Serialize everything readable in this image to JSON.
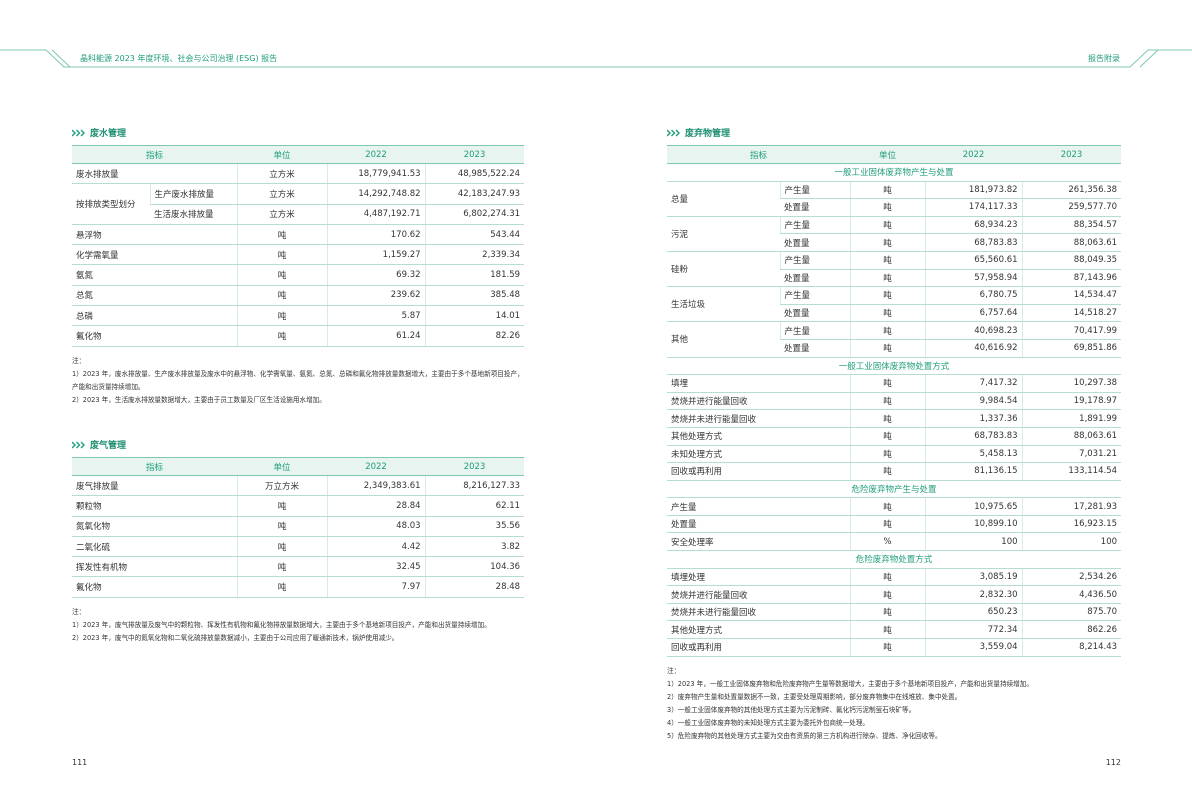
{
  "header": {
    "title": "晶科能源 2023 年度环境、社会与公司治理 (ESG) 报告",
    "section": "报告附录"
  },
  "page_numbers": [
    "111",
    "112"
  ],
  "wastewater": {
    "title": "废水管理",
    "header": [
      "指标",
      "单位",
      "2022",
      "2023"
    ],
    "rows": [
      [
        "废水排放量",
        "立方米",
        "18,779,941.53",
        "48,985,522.24"
      ],
      {
        "label": "按排放类型划分",
        "rows": [
          [
            "生产废水排放量",
            "立方米",
            "14,292,748.82",
            "42,183,247.93"
          ],
          [
            "生活废水排放量",
            "立方米",
            "4,487,192.71",
            "6,802,274.31"
          ]
        ]
      },
      [
        "悬浮物",
        "吨",
        "170.62",
        "543.44"
      ],
      [
        "化学需氧量",
        "吨",
        "1,159.27",
        "2,339.34"
      ],
      [
        "氨氮",
        "吨",
        "69.32",
        "181.59"
      ],
      [
        "总氮",
        "吨",
        "239.62",
        "385.48"
      ],
      [
        "总磷",
        "吨",
        "5.87",
        "14.01"
      ],
      [
        "氟化物",
        "吨",
        "61.24",
        "82.26"
      ]
    ],
    "notes_label": "注：",
    "notes": [
      "1）2023 年，废水排放量、生产废水排放量及废水中的悬浮物、化学需氧量、氨氮、总氮、总磷和氟化物排放量数据增大，主要由于多个基地新项目投产，产能和出货量持续增加。",
      "2）2023 年，生活废水排放量数据增大，主要由于员工数量及厂区生活设施用水增加。"
    ]
  },
  "waste_gas": {
    "title": "废气管理",
    "header": [
      "指标",
      "单位",
      "2022",
      "2023"
    ],
    "rows": [
      [
        "废气排放量",
        "万立方米",
        "2,349,383.61",
        "8,216,127.33"
      ],
      [
        "颗粒物",
        "吨",
        "28.84",
        "62.11"
      ],
      [
        "氮氧化物",
        "吨",
        "48.03",
        "35.56"
      ],
      [
        "二氧化硫",
        "吨",
        "4.42",
        "3.82"
      ],
      [
        "挥发性有机物",
        "吨",
        "32.45",
        "104.36"
      ],
      [
        "氟化物",
        "吨",
        "7.97",
        "28.48"
      ]
    ],
    "notes_label": "注：",
    "notes": [
      "1）2023 年，废气排放量及废气中的颗粒物、挥发性有机物和氟化物排放量数据增大，主要由于多个基地新项目投产，产能和出货量持续增加。",
      "2）2023 年，废气中的氮氧化物和二氧化硫排放量数据减小，主要由于公司应用了暖通新技术，锅炉使用减少。"
    ]
  },
  "waste": {
    "title": "废弃物管理",
    "header": [
      "指标",
      "单位",
      "2022",
      "2023"
    ],
    "sections": [
      {
        "title": "一般工业固体废弃物产生与处置",
        "rows": [
          {
            "label": "总量",
            "rows": [
              [
                "产生量",
                "吨",
                "181,973.82",
                "261,356.38"
              ],
              [
                "处置量",
                "吨",
                "174,117.33",
                "259,577.70"
              ]
            ]
          },
          {
            "label": "污泥",
            "rows": [
              [
                "产生量",
                "吨",
                "68,934.23",
                "88,354.57"
              ],
              [
                "处置量",
                "吨",
                "68,783.83",
                "88,063.61"
              ]
            ]
          },
          {
            "label": "硅粉",
            "rows": [
              [
                "产生量",
                "吨",
                "65,560.61",
                "88,049.35"
              ],
              [
                "处置量",
                "吨",
                "57,958.94",
                "87,143.96"
              ]
            ]
          },
          {
            "label": "生活垃圾",
            "rows": [
              [
                "产生量",
                "吨",
                "6,780.75",
                "14,534.47"
              ],
              [
                "处置量",
                "吨",
                "6,757.64",
                "14,518.27"
              ]
            ]
          },
          {
            "label": "其他",
            "rows": [
              [
                "产生量",
                "吨",
                "40,698.23",
                "70,417.99"
              ],
              [
                "处置量",
                "吨",
                "40,616.92",
                "69,851.86"
              ]
            ]
          }
        ]
      },
      {
        "title": "一般工业固体废弃物处置方式",
        "rows": [
          [
            "填埋",
            "吨",
            "7,417.32",
            "10,297.38"
          ],
          [
            "焚烧并进行能量回收",
            "吨",
            "9,984.54",
            "19,178.97"
          ],
          [
            "焚烧并未进行能量回收",
            "吨",
            "1,337.36",
            "1,891.99"
          ],
          [
            "其他处理方式",
            "吨",
            "68,783.83",
            "88,063.61"
          ],
          [
            "未知处理方式",
            "吨",
            "5,458.13",
            "7,031.21"
          ],
          [
            "回收或再利用",
            "吨",
            "81,136.15",
            "133,114.54"
          ]
        ]
      },
      {
        "title": "危险废弃物产生与处置",
        "rows": [
          [
            "产生量",
            "吨",
            "10,975.65",
            "17,281.93"
          ],
          [
            "处置量",
            "吨",
            "10,899.10",
            "16,923.15"
          ],
          [
            "安全处理率",
            "%",
            "100",
            "100"
          ]
        ]
      },
      {
        "title": "危险废弃物处置方式",
        "rows": [
          [
            "填埋处理",
            "吨",
            "3,085.19",
            "2,534.26"
          ],
          [
            "焚烧并进行能量回收",
            "吨",
            "2,832.30",
            "4,436.50"
          ],
          [
            "焚烧并未进行能量回收",
            "吨",
            "650.23",
            "875.70"
          ],
          [
            "其他处理方式",
            "吨",
            "772.34",
            "862.26"
          ],
          [
            "回收或再利用",
            "吨",
            "3,559.04",
            "8,214.43"
          ]
        ]
      }
    ],
    "notes_label": "注：",
    "notes": [
      "1）2023 年，一般工业固体废弃物和危险废弃物产生量等数据增大，主要由于多个基地新项目投产，产能和出货量持续增加。",
      "2）废弃物产生量和处置量数据不一致，主要受处理周期影响，部分废弃物集中在线堆放、集中处置。",
      "3）一般工业固体废弃物的其他处理方式主要为污泥制砖、氟化钙污泥制萤石块矿等。",
      "4）一般工业固体废弃物的未知处理方式主要为委托外包商统一处理。",
      "5）危险废弃物的其他处理方式主要为交由有资质的第三方机构进行除杂、提炼、净化回收等。"
    ]
  }
}
